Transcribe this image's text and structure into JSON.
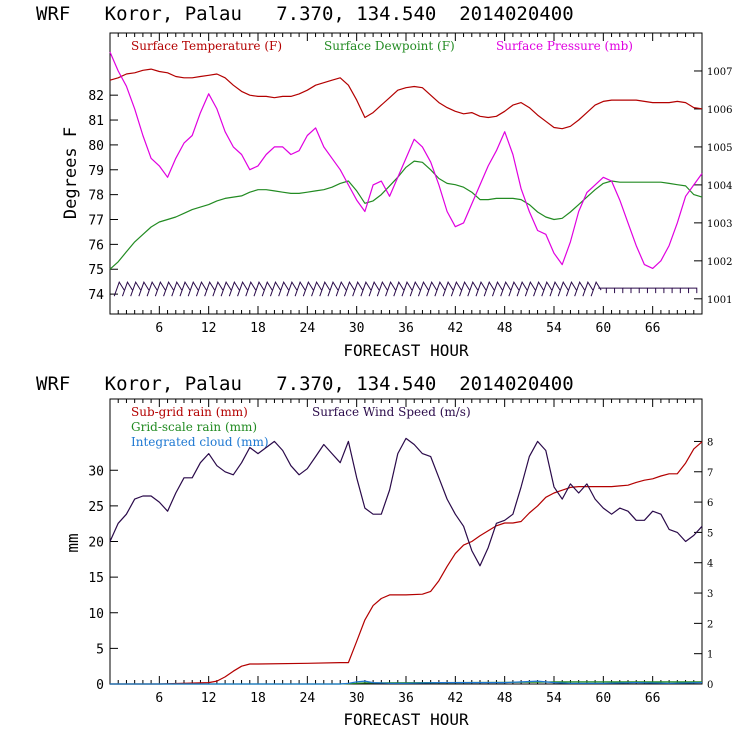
{
  "colors": {
    "temperature": "#b30000",
    "dewpoint": "#228b22",
    "pressure": "#e000e0",
    "subgrid_rain": "#b30000",
    "gridscale_rain": "#228b22",
    "cloud": "#1e78d2",
    "wind": "#2a0a4a"
  },
  "chart_data": [
    {
      "type": "line",
      "title": "WRF   Koror, Palau   7.370, 134.540  2014020400",
      "xlabel": "FORECAST HOUR",
      "ylabel": "Degrees F",
      "xlim": [
        0,
        72
      ],
      "ylim": [
        73.2,
        84.5
      ],
      "ylim_right": [
        1000.6,
        1008.0
      ],
      "x_ticks": [
        6,
        12,
        18,
        24,
        30,
        36,
        42,
        48,
        54,
        60,
        66
      ],
      "x_tick_labels": [
        "6",
        "12",
        "18",
        "24",
        "30",
        "36",
        "42",
        "48",
        "54",
        "60",
        "66"
      ],
      "y_ticks": [
        74,
        75,
        76,
        77,
        78,
        79,
        80,
        81,
        82
      ],
      "y_tick_labels": [
        "74",
        "75",
        "76",
        "77",
        "78",
        "79",
        "80",
        "81",
        "82"
      ],
      "y2_ticks": [
        1001,
        1002,
        1003,
        1004,
        1005,
        1006,
        1007
      ],
      "y2_tick_labels": [
        "1001",
        "1002",
        "1003",
        "1004",
        "1005",
        "1006",
        "1007"
      ],
      "legend": [
        "Surface Temperature (F)",
        "Surface Dewpoint (F)",
        "Surface Pressure (mb)"
      ],
      "series": [
        {
          "name": "Surface Temperature (F)",
          "axis": "left",
          "x": [
            0,
            1,
            2,
            3,
            4,
            5,
            6,
            7,
            8,
            9,
            10,
            11,
            12,
            13,
            14,
            15,
            16,
            17,
            18,
            19,
            20,
            21,
            22,
            23,
            24,
            25,
            26,
            27,
            28,
            29,
            30,
            31,
            32,
            33,
            34,
            35,
            36,
            37,
            38,
            39,
            40,
            41,
            42,
            43,
            44,
            45,
            46,
            47,
            48,
            49,
            50,
            51,
            52,
            53,
            54,
            55,
            56,
            57,
            58,
            59,
            60,
            61,
            62,
            63,
            64,
            65,
            66,
            67,
            68,
            69,
            70,
            71,
            72
          ],
          "values": [
            82.6,
            82.7,
            82.85,
            82.9,
            83.0,
            83.05,
            82.95,
            82.9,
            82.75,
            82.7,
            82.7,
            82.75,
            82.8,
            82.85,
            82.7,
            82.4,
            82.15,
            82.0,
            81.95,
            81.95,
            81.9,
            81.95,
            81.95,
            82.05,
            82.2,
            82.4,
            82.5,
            82.6,
            82.7,
            82.4,
            81.8,
            81.1,
            81.3,
            81.6,
            81.9,
            82.2,
            82.3,
            82.35,
            82.3,
            82.0,
            81.7,
            81.5,
            81.35,
            81.25,
            81.3,
            81.15,
            81.1,
            81.15,
            81.35,
            81.6,
            81.7,
            81.5,
            81.2,
            80.95,
            80.7,
            80.65,
            80.75,
            81.0,
            81.3,
            81.6,
            81.75,
            81.8,
            81.8,
            81.8,
            81.8,
            81.75,
            81.7,
            81.7,
            81.7,
            81.75,
            81.7,
            81.5,
            81.45
          ]
        },
        {
          "name": "Surface Dewpoint (F)",
          "axis": "left",
          "x": [
            0,
            1,
            2,
            3,
            4,
            5,
            6,
            7,
            8,
            9,
            10,
            11,
            12,
            13,
            14,
            15,
            16,
            17,
            18,
            19,
            20,
            21,
            22,
            23,
            24,
            25,
            26,
            27,
            28,
            29,
            30,
            31,
            32,
            33,
            34,
            35,
            36,
            37,
            38,
            39,
            40,
            41,
            42,
            43,
            44,
            45,
            46,
            47,
            48,
            49,
            50,
            51,
            52,
            53,
            54,
            55,
            56,
            57,
            58,
            59,
            60,
            61,
            62,
            63,
            64,
            65,
            66,
            67,
            68,
            69,
            70,
            71,
            72
          ],
          "values": [
            75.0,
            75.3,
            75.7,
            76.1,
            76.4,
            76.7,
            76.9,
            77.0,
            77.1,
            77.25,
            77.4,
            77.5,
            77.6,
            77.75,
            77.85,
            77.9,
            77.95,
            78.1,
            78.2,
            78.2,
            78.15,
            78.1,
            78.05,
            78.05,
            78.1,
            78.15,
            78.2,
            78.3,
            78.45,
            78.55,
            78.15,
            77.65,
            77.75,
            78.0,
            78.35,
            78.7,
            79.1,
            79.35,
            79.3,
            79.0,
            78.65,
            78.45,
            78.4,
            78.3,
            78.1,
            77.8,
            77.8,
            77.85,
            77.85,
            77.85,
            77.8,
            77.6,
            77.3,
            77.1,
            77.0,
            77.05,
            77.3,
            77.6,
            77.9,
            78.2,
            78.45,
            78.55,
            78.5,
            78.5,
            78.5,
            78.5,
            78.5,
            78.5,
            78.45,
            78.4,
            78.35,
            78.0,
            77.9
          ]
        },
        {
          "name": "Surface Pressure (mb)",
          "axis": "right",
          "x": [
            0,
            1,
            2,
            3,
            4,
            5,
            6,
            7,
            8,
            9,
            10,
            11,
            12,
            13,
            14,
            15,
            16,
            17,
            18,
            19,
            20,
            21,
            22,
            23,
            24,
            25,
            26,
            27,
            28,
            29,
            30,
            31,
            32,
            33,
            34,
            35,
            36,
            37,
            38,
            39,
            40,
            41,
            42,
            43,
            44,
            45,
            46,
            47,
            48,
            49,
            50,
            51,
            52,
            53,
            54,
            55,
            56,
            57,
            58,
            59,
            60,
            61,
            62,
            63,
            64,
            65,
            66,
            67,
            68,
            69,
            70,
            71,
            72
          ],
          "values": [
            1007.5,
            1007.0,
            1006.6,
            1006.0,
            1005.3,
            1004.7,
            1004.5,
            1004.2,
            1004.7,
            1005.1,
            1005.3,
            1005.9,
            1006.4,
            1006.0,
            1005.4,
            1005.0,
            1004.8,
            1004.4,
            1004.5,
            1004.8,
            1005.0,
            1005.0,
            1004.8,
            1004.9,
            1005.3,
            1005.5,
            1005.0,
            1004.7,
            1004.4,
            1004.0,
            1003.6,
            1003.3,
            1004.0,
            1004.1,
            1003.7,
            1004.2,
            1004.7,
            1005.2,
            1005.0,
            1004.6,
            1004.0,
            1003.3,
            1002.9,
            1003.0,
            1003.5,
            1004.0,
            1004.5,
            1004.9,
            1005.4,
            1004.8,
            1003.9,
            1003.3,
            1002.8,
            1002.7,
            1002.2,
            1001.9,
            1002.5,
            1003.3,
            1003.8,
            1004.0,
            1004.2,
            1004.1,
            1003.6,
            1003.0,
            1002.4,
            1001.9,
            1001.8,
            1002.0,
            1002.4,
            1003.0,
            1003.7,
            1004.0,
            1004.3
          ]
        }
      ],
      "wind_barbs": {
        "label": "wind barbs (unlabeled)",
        "baseline_y": 74.4,
        "hours": [
          1,
          2,
          3,
          4,
          5,
          6,
          7,
          8,
          9,
          10,
          11,
          12,
          13,
          14,
          15,
          16,
          17,
          18,
          19,
          20,
          21,
          22,
          23,
          24,
          25,
          26,
          27,
          28,
          29,
          30,
          31,
          32,
          33,
          34,
          35,
          36,
          37,
          38,
          39,
          40,
          41,
          42,
          43,
          44,
          45,
          46,
          47,
          48,
          49,
          50,
          51,
          52,
          53,
          54,
          55,
          56,
          57,
          58,
          59,
          60,
          61,
          62,
          63,
          64,
          65,
          66,
          67,
          68,
          69,
          70,
          71
        ]
      }
    },
    {
      "type": "line",
      "title": "WRF   Koror, Palau   7.370, 134.540  2014020400",
      "xlabel": "FORECAST HOUR",
      "ylabel": "mm",
      "xlim": [
        0,
        72
      ],
      "ylim": [
        0,
        40
      ],
      "ylim_right": [
        0,
        9.4
      ],
      "x_ticks": [
        6,
        12,
        18,
        24,
        30,
        36,
        42,
        48,
        54,
        60,
        66
      ],
      "x_tick_labels": [
        "6",
        "12",
        "18",
        "24",
        "30",
        "36",
        "42",
        "48",
        "54",
        "60",
        "66"
      ],
      "y_ticks": [
        0,
        5,
        10,
        15,
        20,
        25,
        30
      ],
      "y_tick_labels": [
        "0",
        "5",
        "10",
        "15",
        "20",
        "25",
        "30"
      ],
      "y2_ticks": [
        0,
        1,
        2,
        3,
        4,
        5,
        6,
        7,
        8
      ],
      "y2_tick_labels": [
        "0",
        "1",
        "2",
        "3",
        "4",
        "5",
        "6",
        "7",
        "8"
      ],
      "legend": [
        "Sub-grid rain (mm)",
        "Grid-scale rain (mm)",
        "Integrated cloud (mm)",
        "Surface Wind Speed (m/s)"
      ],
      "series": [
        {
          "name": "Sub-grid rain (mm)",
          "axis": "left",
          "x": [
            0,
            6,
            12,
            13,
            14,
            15,
            16,
            17,
            18,
            24,
            28,
            29,
            30,
            31,
            32,
            33,
            34,
            35,
            36,
            38,
            39,
            40,
            41,
            42,
            43,
            44,
            45,
            46,
            47,
            48,
            49,
            50,
            51,
            52,
            53,
            54,
            55,
            56,
            57,
            58,
            59,
            60,
            61,
            62,
            63,
            64,
            65,
            66,
            67,
            68,
            69,
            70,
            71,
            72
          ],
          "values": [
            0,
            0,
            0.2,
            0.4,
            1.0,
            1.8,
            2.5,
            2.8,
            2.8,
            2.9,
            3.0,
            3.0,
            6.0,
            9.0,
            11.0,
            12.0,
            12.5,
            12.5,
            12.5,
            12.6,
            13.0,
            14.5,
            16.5,
            18.3,
            19.5,
            20.0,
            20.8,
            21.5,
            22.2,
            22.6,
            22.6,
            22.8,
            24.0,
            25.0,
            26.2,
            26.8,
            27.2,
            27.6,
            27.7,
            27.7,
            27.7,
            27.7,
            27.7,
            27.8,
            27.9,
            28.3,
            28.6,
            28.8,
            29.2,
            29.5,
            29.5,
            31.0,
            33.0,
            34.0
          ]
        },
        {
          "name": "Grid-scale rain (mm)",
          "axis": "left",
          "x": [
            0,
            28,
            30,
            31,
            40,
            52,
            54,
            60,
            72
          ],
          "values": [
            0,
            0,
            0.1,
            0.15,
            0.2,
            0.25,
            0.3,
            0.3,
            0.3
          ]
        },
        {
          "name": "Integrated cloud (mm)",
          "axis": "left",
          "x": [
            0,
            28,
            29,
            30,
            31,
            32,
            34,
            36,
            40,
            44,
            48,
            50,
            52,
            54,
            56,
            60,
            64,
            68,
            72
          ],
          "values": [
            0,
            0,
            0.1,
            0.3,
            0.4,
            0.2,
            0.1,
            0.1,
            0.2,
            0.2,
            0.2,
            0.3,
            0.4,
            0.2,
            0.1,
            0.1,
            0.2,
            0.1,
            0.2
          ]
        },
        {
          "name": "Surface Wind Speed (m/s)",
          "axis": "right",
          "x": [
            0,
            1,
            2,
            3,
            4,
            5,
            6,
            7,
            8,
            9,
            10,
            11,
            12,
            13,
            14,
            15,
            16,
            17,
            18,
            19,
            20,
            21,
            22,
            23,
            24,
            25,
            26,
            27,
            28,
            29,
            30,
            31,
            32,
            33,
            34,
            35,
            36,
            37,
            38,
            39,
            40,
            41,
            42,
            43,
            44,
            45,
            46,
            47,
            48,
            49,
            50,
            51,
            52,
            53,
            54,
            55,
            56,
            57,
            58,
            59,
            60,
            61,
            62,
            63,
            64,
            65,
            66,
            67,
            68,
            69,
            70,
            71,
            72
          ],
          "values": [
            4.7,
            5.3,
            5.6,
            6.1,
            6.2,
            6.2,
            6.0,
            5.7,
            6.3,
            6.8,
            6.8,
            7.3,
            7.6,
            7.2,
            7.0,
            6.9,
            7.3,
            7.8,
            7.6,
            7.8,
            8.0,
            7.7,
            7.2,
            6.9,
            7.1,
            7.5,
            7.9,
            7.6,
            7.3,
            8.0,
            6.8,
            5.8,
            5.6,
            5.6,
            6.4,
            7.6,
            8.1,
            7.9,
            7.6,
            7.5,
            6.8,
            6.1,
            5.6,
            5.2,
            4.4,
            3.9,
            4.5,
            5.3,
            5.4,
            5.6,
            6.5,
            7.5,
            8.0,
            7.7,
            6.5,
            6.1,
            6.6,
            6.3,
            6.6,
            6.1,
            5.8,
            5.6,
            5.8,
            5.7,
            5.4,
            5.4,
            5.7,
            5.6,
            5.1,
            5.0,
            4.7,
            4.9,
            5.2
          ]
        }
      ]
    }
  ]
}
